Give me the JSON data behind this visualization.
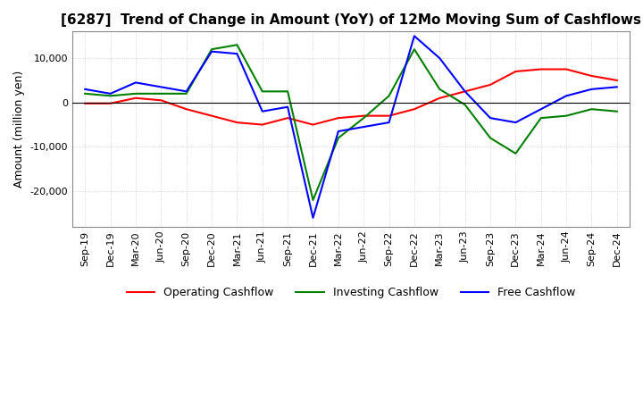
{
  "title": "[6287]  Trend of Change in Amount (YoY) of 12Mo Moving Sum of Cashflows",
  "ylabel": "Amount (million yen)",
  "x_labels": [
    "Sep-19",
    "Dec-19",
    "Mar-20",
    "Jun-20",
    "Sep-20",
    "Dec-20",
    "Mar-21",
    "Jun-21",
    "Sep-21",
    "Dec-21",
    "Mar-22",
    "Jun-22",
    "Sep-22",
    "Dec-22",
    "Mar-23",
    "Jun-23",
    "Sep-23",
    "Dec-23",
    "Mar-24",
    "Jun-24",
    "Sep-24",
    "Dec-24"
  ],
  "operating_cashflow": [
    -200,
    -200,
    1000,
    500,
    -1500,
    -3000,
    -4500,
    -5000,
    -3500,
    -5000,
    -3500,
    -3000,
    -3000,
    -1500,
    1000,
    2500,
    4000,
    7000,
    7500,
    7500,
    6000,
    5000
  ],
  "investing_cashflow": [
    2000,
    1500,
    2000,
    2000,
    2000,
    12000,
    13000,
    2500,
    2500,
    -22000,
    -8000,
    -3500,
    1500,
    12000,
    3000,
    -500,
    -8000,
    -11500,
    -3500,
    -3000,
    -1500,
    -2000
  ],
  "free_cashflow": [
    3000,
    2000,
    4500,
    3500,
    2500,
    11500,
    11000,
    -2000,
    -1000,
    -26000,
    -6500,
    -5500,
    -4500,
    15000,
    10000,
    2500,
    -3500,
    -4500,
    -1500,
    1500,
    3000,
    3500
  ],
  "operating_color": "#ff0000",
  "investing_color": "#008000",
  "free_color": "#0000ff",
  "ylim": [
    -28000,
    16000
  ],
  "yticks": [
    10000,
    0,
    -10000,
    -20000
  ],
  "grid_color": "#c8c8c8",
  "background_color": "#ffffff",
  "title_fontsize": 11,
  "axis_fontsize": 9,
  "tick_fontsize": 8,
  "legend_fontsize": 9
}
